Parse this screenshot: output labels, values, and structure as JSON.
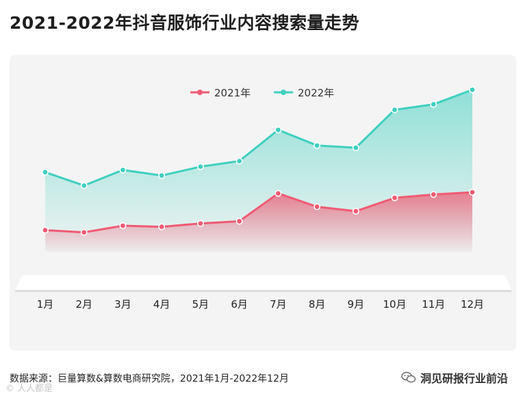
{
  "title": "2021-2022年抖音服饰行业内容搜索量走势",
  "source": "数据来源：巨量算数&算数电商研究院，2021年1月-2022年12月",
  "brand": "洞见研报行业前沿",
  "watermark": "© 人人都是",
  "chart_data": {
    "type": "area",
    "title": "2021-2022年抖音服饰行业内容搜索量走势",
    "categories": [
      "1月",
      "2月",
      "3月",
      "4月",
      "5月",
      "6月",
      "7月",
      "8月",
      "9月",
      "10月",
      "11月",
      "12月"
    ],
    "series": [
      {
        "name": "2021年",
        "color": "#f05a72",
        "values": [
          14,
          12,
          18,
          17,
          20,
          22,
          47,
          35,
          31,
          43,
          46,
          48
        ]
      },
      {
        "name": "2022年",
        "color": "#3ecfbf",
        "values": [
          66,
          54,
          68,
          63,
          71,
          76,
          104,
          90,
          88,
          122,
          127,
          140
        ]
      }
    ],
    "ylim": [
      -25,
      150
    ],
    "grid": false,
    "legend": "top-center",
    "xlabel": "",
    "ylabel": ""
  }
}
